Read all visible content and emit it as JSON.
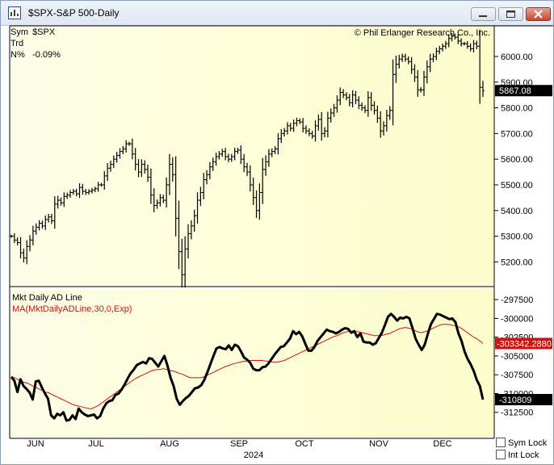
{
  "window": {
    "title": "$SPX-S&P 500-Daily",
    "icon": "chart-app-icon",
    "buttons": [
      "minimize-icon",
      "maximize-icon",
      "close-icon"
    ]
  },
  "info": {
    "sym_label": "Sym",
    "sym_value": "$SPX",
    "trd_label": "Trd",
    "n_label": "N%",
    "n_value": "-0.09%"
  },
  "copyright": "© Phil Erlanger Research Co., Inc.",
  "indicator": {
    "name": "Mkt Daily AD Line",
    "ma_label": "MA(MktDailyADLine,30,0,Exp)"
  },
  "locks": {
    "sym_lock": "Sym Lock",
    "int_lock": "Int Lock"
  },
  "colors": {
    "price_bar": "#000000",
    "ad_line": "#000000",
    "ma_line": "#d21010",
    "last_box_black": "#000000",
    "last_box_red": "#d21010"
  },
  "chart_data": [
    {
      "type": "bar",
      "subtype": "ohlc",
      "title": "$SPX-S&P 500-Daily",
      "ylim": [
        5110,
        6110
      ],
      "yticks": [
        "5200.00",
        "5300.00",
        "5400.00",
        "5500.00",
        "5600.00",
        "5700.00",
        "5800.00",
        "5900.00",
        "6000.00"
      ],
      "last_value_label": "5867.08",
      "x_labels": [
        "JUN",
        "JUL",
        "AUG",
        "SEP",
        "OCT",
        "NOV",
        "DEC"
      ],
      "year_label": "2024",
      "close": [
        5300,
        5285,
        5275,
        5235,
        5215,
        5260,
        5285,
        5320,
        5335,
        5350,
        5340,
        5365,
        5375,
        5360,
        5425,
        5440,
        5430,
        5455,
        5460,
        5470,
        5475,
        5465,
        5490,
        5475,
        5470,
        5475,
        5480,
        5485,
        5500,
        5500,
        5535,
        5565,
        5580,
        5600,
        5615,
        5630,
        5640,
        5660,
        5660,
        5620,
        5580,
        5550,
        5580,
        5560,
        5530,
        5460,
        5420,
        5430,
        5450,
        5440,
        5500,
        5580,
        5540,
        5370,
        5240,
        5150,
        5250,
        5310,
        5340,
        5380,
        5440,
        5470,
        5520,
        5540,
        5570,
        5590,
        5610,
        5620,
        5630,
        5610,
        5600,
        5610,
        5630,
        5635,
        5600,
        5570,
        5550,
        5500,
        5450,
        5400,
        5470,
        5560,
        5590,
        5620,
        5630,
        5640,
        5680,
        5700,
        5710,
        5730,
        5720,
        5740,
        5750,
        5745,
        5720,
        5710,
        5700,
        5690,
        5730,
        5755,
        5700,
        5710,
        5760,
        5780,
        5800,
        5830,
        5860,
        5850,
        5840,
        5820,
        5850,
        5830,
        5810,
        5800,
        5790,
        5840,
        5810,
        5790,
        5760,
        5710,
        5730,
        5770,
        5790,
        5930,
        5970,
        5990,
        6000,
        5990,
        5980,
        5950,
        5920,
        5870,
        5870,
        5920,
        5960,
        5990,
        6000,
        6020,
        6030,
        6040,
        6050,
        6070,
        6080,
        6075,
        6060,
        6050,
        6050,
        6040,
        6030,
        6050,
        6040,
        5880,
        5867.08
      ]
    },
    {
      "type": "line",
      "title": "Mkt Daily AD Line",
      "ylim": [
        -315750,
        -296200
      ],
      "yticks": [
        "-297500",
        "-300000",
        "-302500",
        "-305000",
        "-307500",
        "-310000",
        "-312500"
      ],
      "last_value_label": "-310809",
      "ma_last_value_label": "-303342.2880",
      "series": [
        {
          "name": "Mkt Daily AD Line",
          "values": [
            -307800,
            -308300,
            -309800,
            -308100,
            -309000,
            -309400,
            -309900,
            -310800,
            -308400,
            -308300,
            -309200,
            -310000,
            -310700,
            -312900,
            -313300,
            -312700,
            -312900,
            -312500,
            -313600,
            -313500,
            -312900,
            -313400,
            -312000,
            -312500,
            -312800,
            -313000,
            -312900,
            -312800,
            -313300,
            -313000,
            -312000,
            -311300,
            -311000,
            -310900,
            -310200,
            -310000,
            -309500,
            -308800,
            -308000,
            -307300,
            -306800,
            -306200,
            -306000,
            -305800,
            -306000,
            -305300,
            -305400,
            -305900,
            -306400,
            -305700,
            -305000,
            -306300,
            -307900,
            -309000,
            -310700,
            -311500,
            -311000,
            -310600,
            -310300,
            -309800,
            -309300,
            -309200,
            -308900,
            -308200,
            -307200,
            -306100,
            -305000,
            -304000,
            -303800,
            -304000,
            -304100,
            -303600,
            -304200,
            -303500,
            -303700,
            -304400,
            -305200,
            -305500,
            -305900,
            -306700,
            -306900,
            -306900,
            -306500,
            -306400,
            -306000,
            -305400,
            -304800,
            -304300,
            -303800,
            -303700,
            -303200,
            -302700,
            -301700,
            -302100,
            -301800,
            -302400,
            -303400,
            -304300,
            -304300,
            -303800,
            -303000,
            -302500,
            -302000,
            -301500,
            -301700,
            -301800,
            -302000,
            -301800,
            -301500,
            -301300,
            -301400,
            -301900,
            -301700,
            -302500,
            -302000,
            -303100,
            -303200,
            -303200,
            -303500,
            -303300,
            -302600,
            -301900,
            -300900,
            -299800,
            -299400,
            -299800,
            -300300,
            -299900,
            -300000,
            -299800,
            -300000,
            -301300,
            -302700,
            -303500,
            -304200,
            -303500,
            -302100,
            -300800,
            -300100,
            -299400,
            -299500,
            -299700,
            -299900,
            -300100,
            -300000,
            -300500,
            -302000,
            -303000,
            -304400,
            -305400,
            -306100,
            -307000,
            -308200,
            -309000,
            -310809
          ]
        },
        {
          "name": "MA(MktDailyADLine,30,0,Exp)",
          "values": [
            -307700,
            -307900,
            -308100,
            -308300,
            -308500,
            -308600,
            -308800,
            -309000,
            -309200,
            -309400,
            -309600,
            -309800,
            -309900,
            -310100,
            -310300,
            -310500,
            -310700,
            -310900,
            -311100,
            -311300,
            -311500,
            -311600,
            -311700,
            -311800,
            -311900,
            -312000,
            -312000,
            -311800,
            -311600,
            -311300,
            -311000,
            -310700,
            -310400,
            -310100,
            -309800,
            -309500,
            -309200,
            -308900,
            -308600,
            -308300,
            -308000,
            -307800,
            -307600,
            -307400,
            -307200,
            -307000,
            -306900,
            -306800,
            -306800,
            -306700,
            -306800,
            -306900,
            -307000,
            -307100,
            -307300,
            -307400,
            -307600,
            -307800,
            -307900,
            -307900,
            -307900,
            -307900,
            -307800,
            -307600,
            -307400,
            -307200,
            -307000,
            -306800,
            -306600,
            -306400,
            -306300,
            -306100,
            -306000,
            -305900,
            -305800,
            -305700,
            -305700,
            -305600,
            -305600,
            -305600,
            -305600,
            -305600,
            -305700,
            -305700,
            -305800,
            -305800,
            -305800,
            -305700,
            -305600,
            -305400,
            -305200,
            -305000,
            -304800,
            -304600,
            -304400,
            -304200,
            -304000,
            -303800,
            -303600,
            -303400,
            -303200,
            -303000,
            -302800,
            -302600,
            -302400,
            -302300,
            -302100,
            -301900,
            -301800,
            -301700,
            -301700,
            -301700,
            -301800,
            -301900,
            -302000,
            -302100,
            -302200,
            -302300,
            -302300,
            -302300,
            -302200,
            -302100,
            -302000,
            -301800,
            -301600,
            -301400,
            -301300,
            -301200,
            -301300,
            -301400,
            -301600,
            -301800,
            -301900,
            -301800,
            -301700,
            -301500,
            -301300,
            -301100,
            -300900,
            -300800,
            -300800,
            -300800,
            -300900,
            -301000,
            -301100,
            -301300,
            -301600,
            -301900,
            -302200,
            -302500,
            -302700,
            -303000,
            -303342.288
          ]
        }
      ]
    }
  ]
}
